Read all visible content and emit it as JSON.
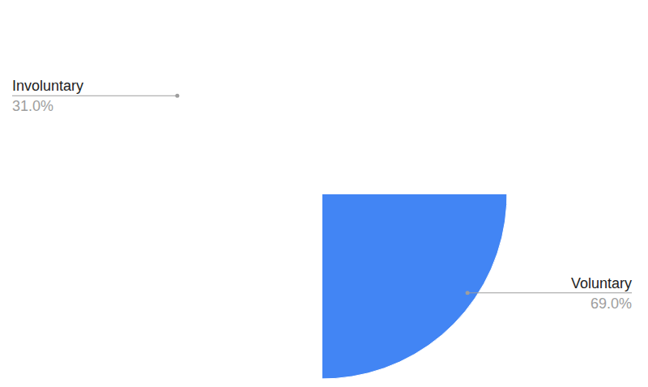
{
  "chart_data": {
    "type": "pie",
    "categories": [
      "Voluntary",
      "Involuntary"
    ],
    "values": [
      69,
      31
    ],
    "value_labels": [
      "69.0%",
      "31.0%"
    ],
    "colors": [
      "#4285f4",
      "#ea4335"
    ],
    "data_labels": true
  }
}
